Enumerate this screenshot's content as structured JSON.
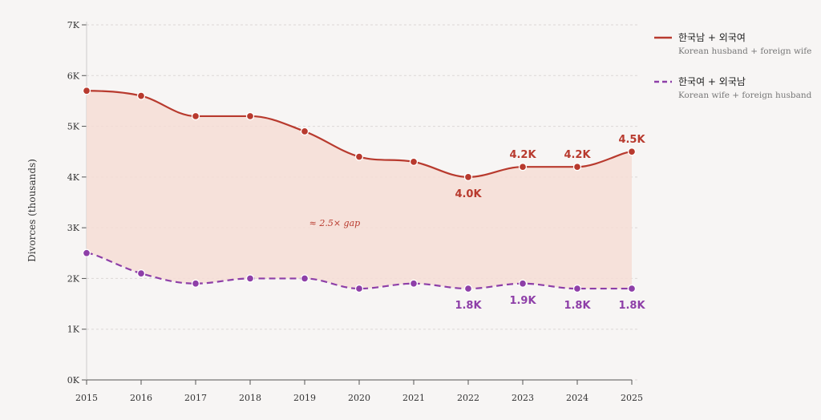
{
  "chart_data": {
    "type": "line",
    "title": "",
    "xlabel": "",
    "ylabel": "Divorces (thousands)",
    "x": [
      "2015",
      "2016",
      "2017",
      "2018",
      "2019",
      "2020",
      "2021",
      "2022",
      "2023",
      "2024",
      "2025"
    ],
    "ylim": [
      0,
      7
    ],
    "yticks": [
      "0K",
      "1K",
      "2K",
      "3K",
      "4K",
      "5K",
      "6K",
      "7K"
    ],
    "grid": true,
    "legend_position": "top-right",
    "series": [
      {
        "name": "한국남 + 외국여",
        "subtitle": "Korean husband + foreign wife",
        "color": "#b83a2e",
        "dashed": false,
        "values": [
          5.7,
          5.6,
          5.2,
          5.2,
          4.9,
          4.4,
          4.3,
          4.0,
          4.2,
          4.2,
          4.5
        ],
        "labels": [
          {
            "index": 7,
            "text": "4.0K",
            "placement": "below"
          },
          {
            "index": 8,
            "text": "4.2K",
            "placement": "above"
          },
          {
            "index": 9,
            "text": "4.2K",
            "placement": "above"
          },
          {
            "index": 10,
            "text": "4.5K",
            "placement": "above"
          }
        ]
      },
      {
        "name": "한국여 + 외국남",
        "subtitle": "Korean wife + foreign husband",
        "color": "#8e3fa8",
        "dashed": true,
        "values": [
          2.5,
          2.1,
          1.9,
          2.0,
          2.0,
          1.8,
          1.9,
          1.8,
          1.9,
          1.8,
          1.8
        ],
        "labels": [
          {
            "index": 7,
            "text": "1.8K",
            "placement": "below"
          },
          {
            "index": 8,
            "text": "1.9K",
            "placement": "below"
          },
          {
            "index": 9,
            "text": "1.8K",
            "placement": "below"
          },
          {
            "index": 10,
            "text": "1.8K",
            "placement": "below"
          }
        ]
      }
    ],
    "gap_fill_color": "#f6ddd5",
    "annotation": {
      "text": "≈ 2.5× gap",
      "x_value": 4.55,
      "y_value": 3.1,
      "color": "#b83a2e"
    }
  }
}
